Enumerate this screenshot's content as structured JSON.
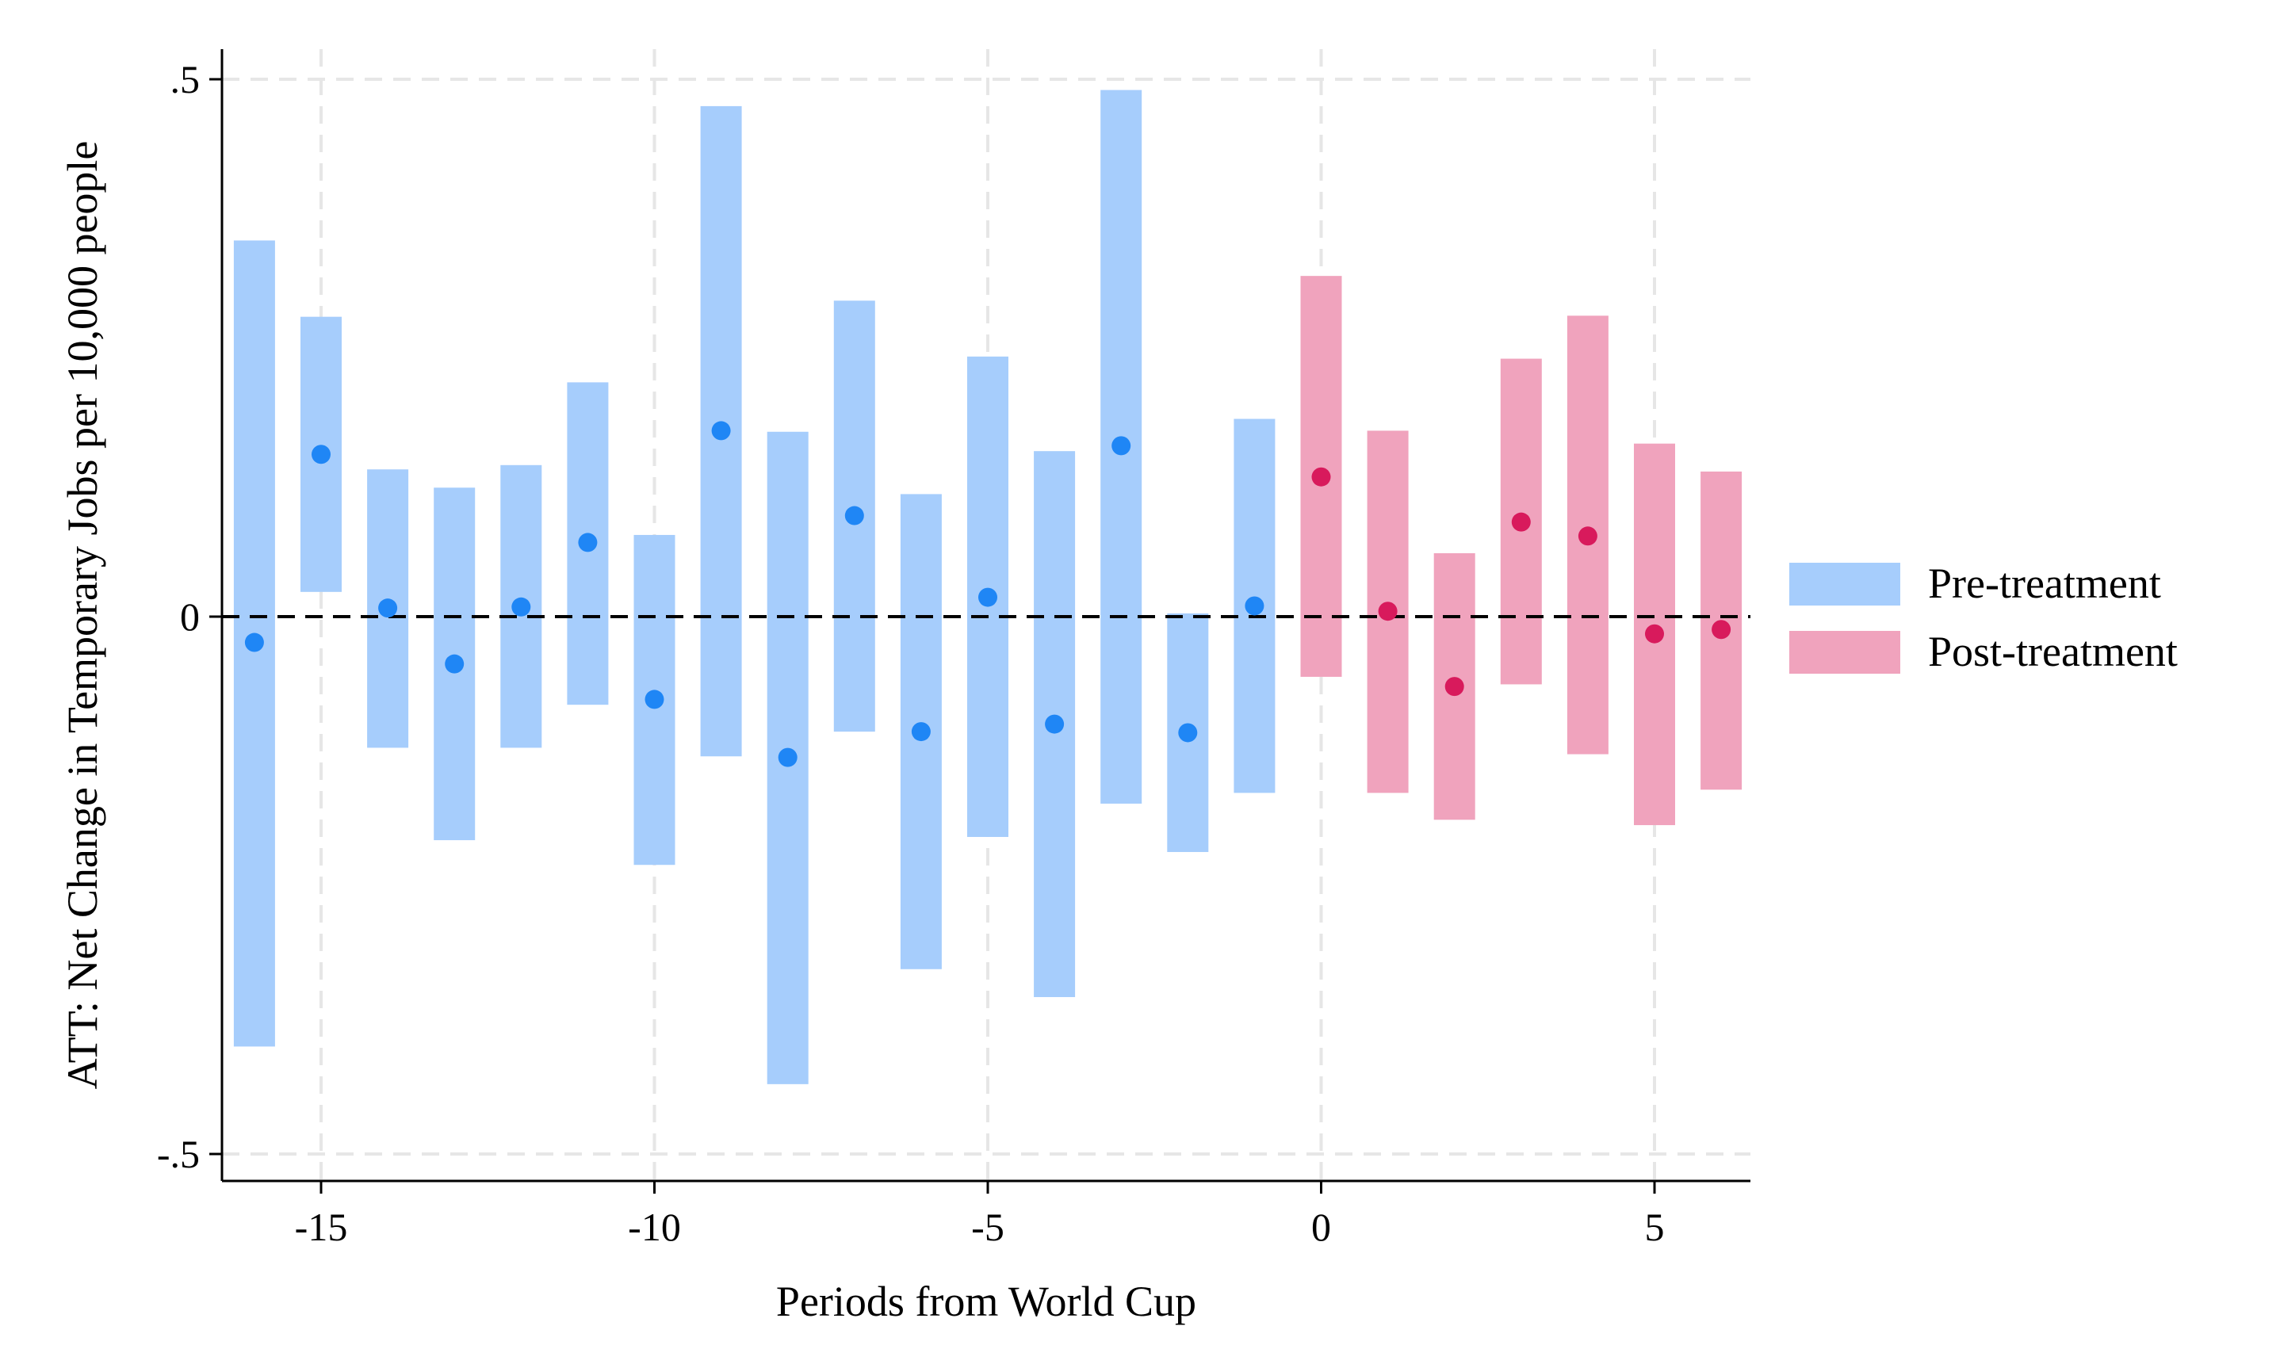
{
  "chart_data": {
    "type": "scatter",
    "subtype": "event-study point estimates with confidence interval bars",
    "title": "",
    "xlabel": "Periods from World Cup",
    "ylabel": "ATT: Net Change in Temporary Jobs per 10,000 people",
    "xlim": [
      -16.5,
      6.5
    ],
    "ylim": [
      -0.53,
      0.53
    ],
    "x_ticks": [
      {
        "value": -15,
        "label": "-15"
      },
      {
        "value": -10,
        "label": "-10"
      },
      {
        "value": -5,
        "label": "-5"
      },
      {
        "value": 0,
        "label": "0"
      },
      {
        "value": 5,
        "label": "5"
      }
    ],
    "y_ticks": [
      {
        "value": 0.5,
        "label": ".5"
      },
      {
        "value": 0,
        "label": "0"
      },
      {
        "value": -0.5,
        "label": "-.5"
      }
    ],
    "grid": true,
    "reference_line": {
      "y": 0,
      "style": "dashed",
      "color": "#000000"
    },
    "legend": {
      "position": "right"
    },
    "series": [
      {
        "name": "Pre-treatment",
        "bar_color": "#a6cdfc",
        "point_color": "#1f86f5",
        "points": [
          {
            "x": -16,
            "y": -0.024,
            "lo": -0.4,
            "hi": 0.35
          },
          {
            "x": -15,
            "y": 0.151,
            "lo": 0.023,
            "hi": 0.279
          },
          {
            "x": -14,
            "y": 0.008,
            "lo": -0.122,
            "hi": 0.137
          },
          {
            "x": -13,
            "y": -0.044,
            "lo": -0.208,
            "hi": 0.12
          },
          {
            "x": -12,
            "y": 0.009,
            "lo": -0.122,
            "hi": 0.141
          },
          {
            "x": -11,
            "y": 0.069,
            "lo": -0.082,
            "hi": 0.218
          },
          {
            "x": -10,
            "y": -0.077,
            "lo": -0.231,
            "hi": 0.076
          },
          {
            "x": -9,
            "y": 0.173,
            "lo": -0.13,
            "hi": 0.475
          },
          {
            "x": -8,
            "y": -0.131,
            "lo": -0.435,
            "hi": 0.172
          },
          {
            "x": -7,
            "y": 0.094,
            "lo": -0.107,
            "hi": 0.294
          },
          {
            "x": -6,
            "y": -0.107,
            "lo": -0.328,
            "hi": 0.114
          },
          {
            "x": -5,
            "y": 0.018,
            "lo": -0.205,
            "hi": 0.242
          },
          {
            "x": -4,
            "y": -0.1,
            "lo": -0.354,
            "hi": 0.154
          },
          {
            "x": -3,
            "y": 0.159,
            "lo": -0.174,
            "hi": 0.49
          },
          {
            "x": -2,
            "y": -0.108,
            "lo": -0.219,
            "hi": 0.003
          },
          {
            "x": -1,
            "y": 0.01,
            "lo": -0.164,
            "hi": 0.184
          }
        ]
      },
      {
        "name": "Post-treatment",
        "bar_color": "#f0a3bd",
        "point_color": "#d81a5c",
        "points": [
          {
            "x": 0,
            "y": 0.13,
            "lo": -0.056,
            "hi": 0.317
          },
          {
            "x": 1,
            "y": 0.005,
            "lo": -0.164,
            "hi": 0.173
          },
          {
            "x": 2,
            "y": -0.065,
            "lo": -0.189,
            "hi": 0.059
          },
          {
            "x": 3,
            "y": 0.088,
            "lo": -0.063,
            "hi": 0.24
          },
          {
            "x": 4,
            "y": 0.075,
            "lo": -0.128,
            "hi": 0.28
          },
          {
            "x": 5,
            "y": -0.016,
            "lo": -0.194,
            "hi": 0.161
          },
          {
            "x": 6,
            "y": -0.012,
            "lo": -0.161,
            "hi": 0.135
          }
        ]
      }
    ]
  }
}
